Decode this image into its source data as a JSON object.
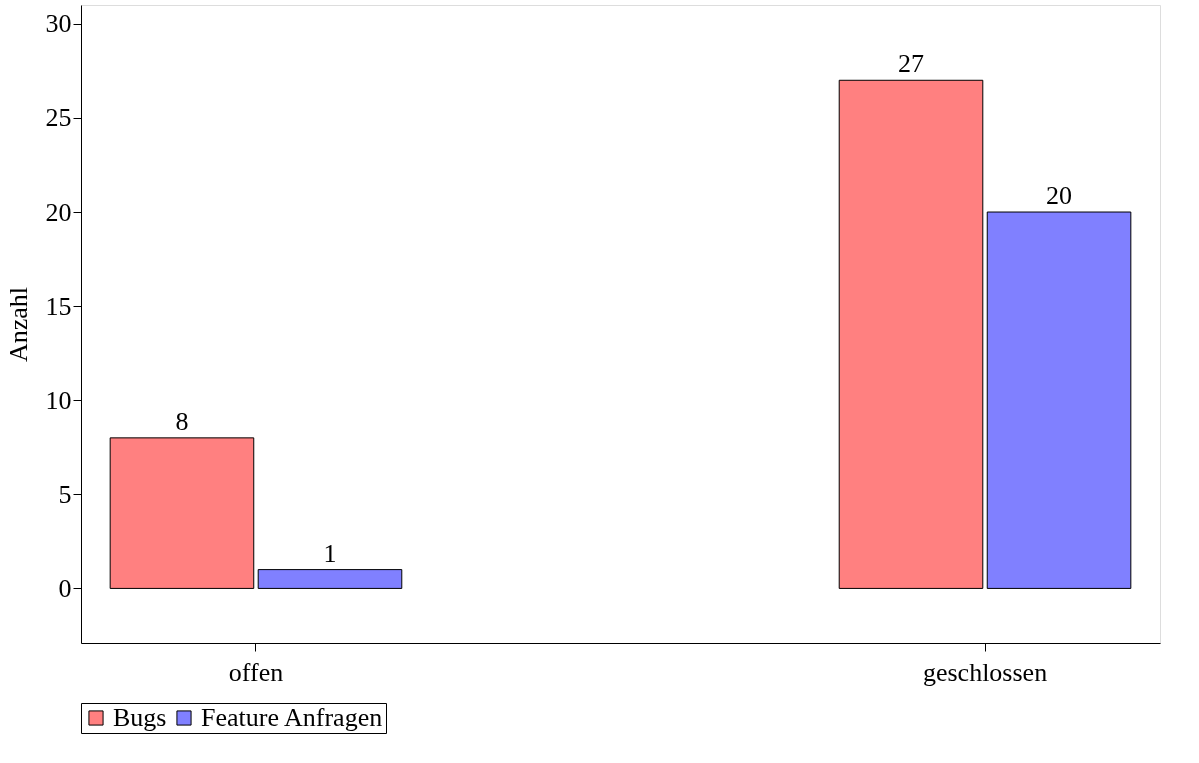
{
  "chart_data": {
    "type": "bar",
    "ylabel": "Anzahl",
    "categories": [
      "offen",
      "geschlossen"
    ],
    "series": [
      {
        "name": "Bugs",
        "color": "#ff8080",
        "values": [
          8,
          27
        ]
      },
      {
        "name": "Feature Anfragen",
        "color": "#8080ff",
        "values": [
          1,
          20
        ]
      }
    ],
    "ylim": [
      -2.9,
      31
    ],
    "yticks": [
      0,
      5,
      10,
      15,
      20,
      25,
      30
    ],
    "grid": false,
    "legend": "bottom",
    "data_labels": true
  }
}
